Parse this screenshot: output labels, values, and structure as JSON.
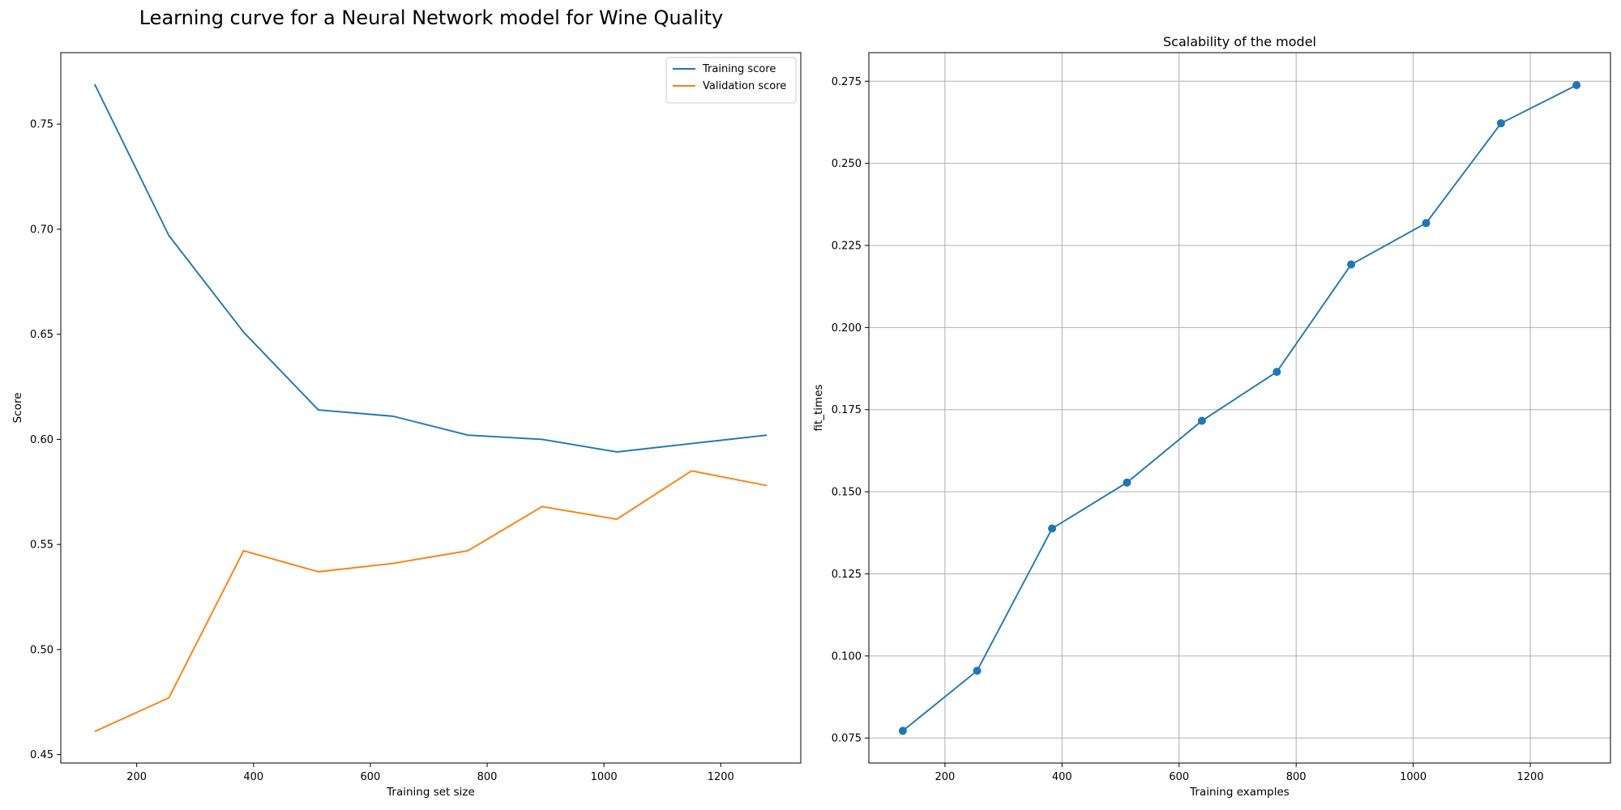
{
  "figure": {
    "suptitle": "Learning curve for a Neural Network model for Wine Quality"
  },
  "chart_data": [
    {
      "type": "line",
      "title": "",
      "xlabel": "Training set size",
      "ylabel": "Score",
      "x": [
        128,
        255,
        383,
        511,
        639,
        767,
        894,
        1022,
        1150,
        1279
      ],
      "series": [
        {
          "name": "Training score",
          "color": "#1f77b4",
          "values": [
            0.769,
            0.697,
            0.651,
            0.614,
            0.611,
            0.602,
            0.6,
            0.594,
            0.598,
            0.602
          ]
        },
        {
          "name": "Validation score",
          "color": "#ff7f0e",
          "values": [
            0.461,
            0.477,
            0.547,
            0.537,
            0.541,
            0.547,
            0.568,
            0.562,
            0.585,
            0.578
          ]
        }
      ],
      "xlim": [
        70,
        1337
      ],
      "ylim": [
        0.446,
        0.784
      ],
      "xticks": [
        200,
        400,
        600,
        800,
        1000,
        1200
      ],
      "yticks": [
        0.45,
        0.5,
        0.55,
        0.6,
        0.65,
        0.7,
        0.75
      ],
      "ytick_labels": [
        "0.45",
        "0.50",
        "0.55",
        "0.60",
        "0.65",
        "0.70",
        "0.75"
      ],
      "grid": false,
      "legend_position": "top-right"
    },
    {
      "type": "line",
      "title": "Scalability of the model",
      "xlabel": "Training examples",
      "ylabel": "fit_times",
      "x": [
        128,
        255,
        383,
        511,
        639,
        767,
        894,
        1022,
        1150,
        1279
      ],
      "series": [
        {
          "name": "",
          "color": "#1f77b4",
          "marker": "circle",
          "values": [
            0.0772,
            0.0955,
            0.1388,
            0.1528,
            0.1716,
            0.1865,
            0.2192,
            0.2318,
            0.2622,
            0.2738
          ]
        }
      ],
      "xlim": [
        70,
        1337
      ],
      "ylim": [
        0.0674,
        0.2837
      ],
      "xticks": [
        200,
        400,
        600,
        800,
        1000,
        1200
      ],
      "yticks": [
        0.075,
        0.1,
        0.125,
        0.15,
        0.175,
        0.2,
        0.225,
        0.25,
        0.275
      ],
      "ytick_labels": [
        "0.075",
        "0.100",
        "0.125",
        "0.150",
        "0.175",
        "0.200",
        "0.225",
        "0.250",
        "0.275"
      ],
      "grid": true
    }
  ]
}
